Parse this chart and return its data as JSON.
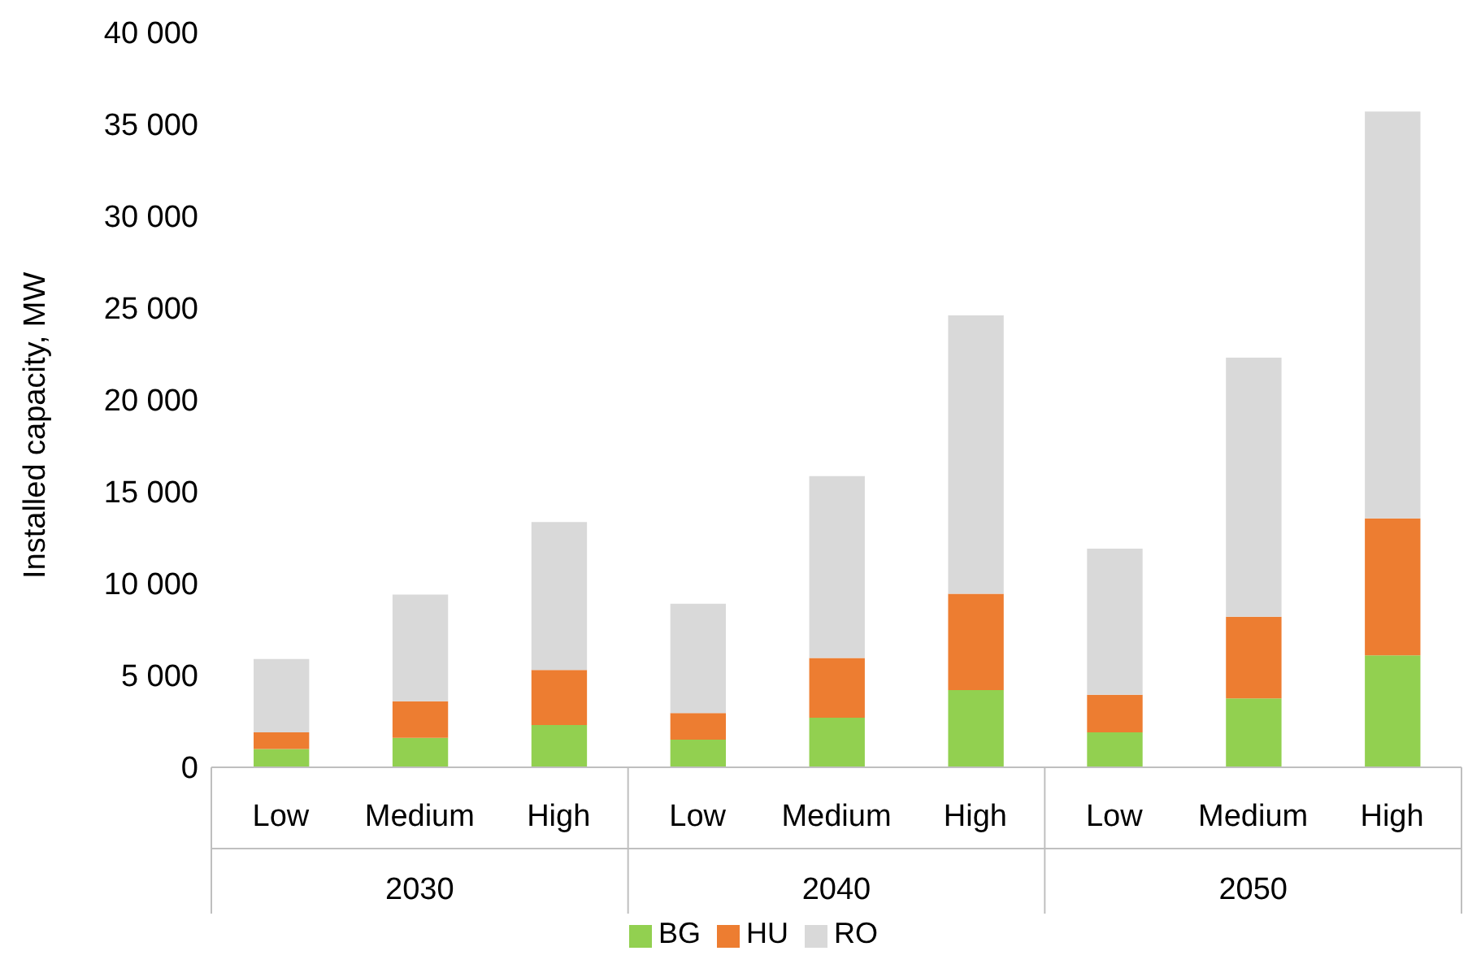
{
  "chart_data": {
    "type": "bar",
    "stacked": true,
    "ylabel": "Installed capacity, MW",
    "categories": [
      "Low",
      "Medium",
      "High",
      "Low",
      "Medium",
      "High",
      "Low",
      "Medium",
      "High"
    ],
    "annotations": [
      "2030",
      "2040",
      "2050"
    ],
    "series": [
      {
        "name": "BG",
        "color": "#92d050",
        "values": [
          1000,
          1600,
          2300,
          1500,
          2700,
          4200,
          1900,
          3750,
          6100
        ]
      },
      {
        "name": "HU",
        "color": "#ed7d31",
        "values": [
          900,
          2000,
          3000,
          1450,
          3250,
          5250,
          2050,
          4450,
          7450
        ]
      },
      {
        "name": "RO",
        "color": "#d9d9d9",
        "values": [
          4000,
          5800,
          8050,
          5950,
          9900,
          15150,
          7950,
          14100,
          22150
        ]
      }
    ],
    "ylim": [
      0,
      40000
    ],
    "yticks": [
      {
        "value": 0,
        "label": "0"
      },
      {
        "value": 5000,
        "label": "5 000"
      },
      {
        "value": 10000,
        "label": "10 000"
      },
      {
        "value": 15000,
        "label": "15 000"
      },
      {
        "value": 20000,
        "label": "20 000"
      },
      {
        "value": 25000,
        "label": "25 000"
      },
      {
        "value": 30000,
        "label": "30 000"
      },
      {
        "value": 35000,
        "label": "35 000"
      },
      {
        "value": 40000,
        "label": "40 000"
      }
    ],
    "grid": false,
    "legend": "bottom"
  }
}
